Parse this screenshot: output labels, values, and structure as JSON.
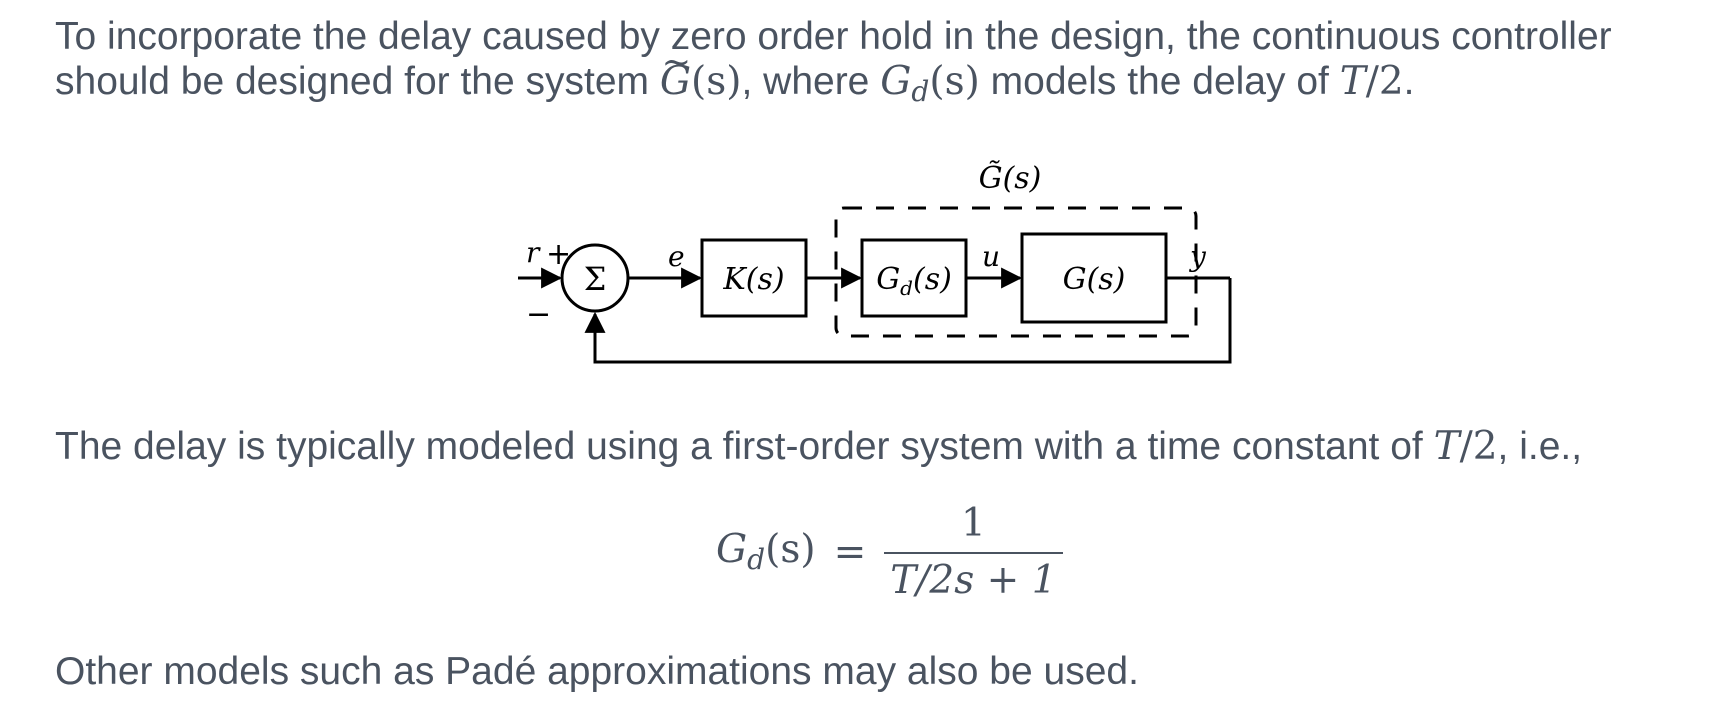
{
  "paragraph1": {
    "line1": "To incorporate the delay caused by zero order hold in the design, the continuous controller",
    "line2_prefix": "should be designed for the system ",
    "line2_mid": ", where ",
    "line2_suffix": " models the delay of ",
    "line2_end": "."
  },
  "math": {
    "G": "G",
    "s_paren": "(s)",
    "d": "d",
    "T": "T",
    "slash2": "/2",
    "tilde": "~"
  },
  "diagram": {
    "top_label": "G̃(s)",
    "r_label": "r",
    "plus_label": "+",
    "minus_label": "−",
    "sum_symbol": "Σ",
    "e_label": "e",
    "controller_label": "K(s)",
    "delay_label_main": "G",
    "delay_label_sub": "d",
    "delay_label_tail": "(s)",
    "u_label": "u",
    "plant_label": "G(s)",
    "y_label": "y"
  },
  "paragraph2": {
    "prefix": "The delay is typically modeled using a first-order system with a time constant of ",
    "suffix": ", i.e.,"
  },
  "equation": {
    "lhs_main": "G",
    "lhs_sub": "d",
    "lhs_tail": "(s)",
    "equals": "=",
    "numerator": "1",
    "denominator": "T/2s + 1"
  },
  "paragraph3": {
    "text": "Other models such as Padé approximations may also be used."
  }
}
